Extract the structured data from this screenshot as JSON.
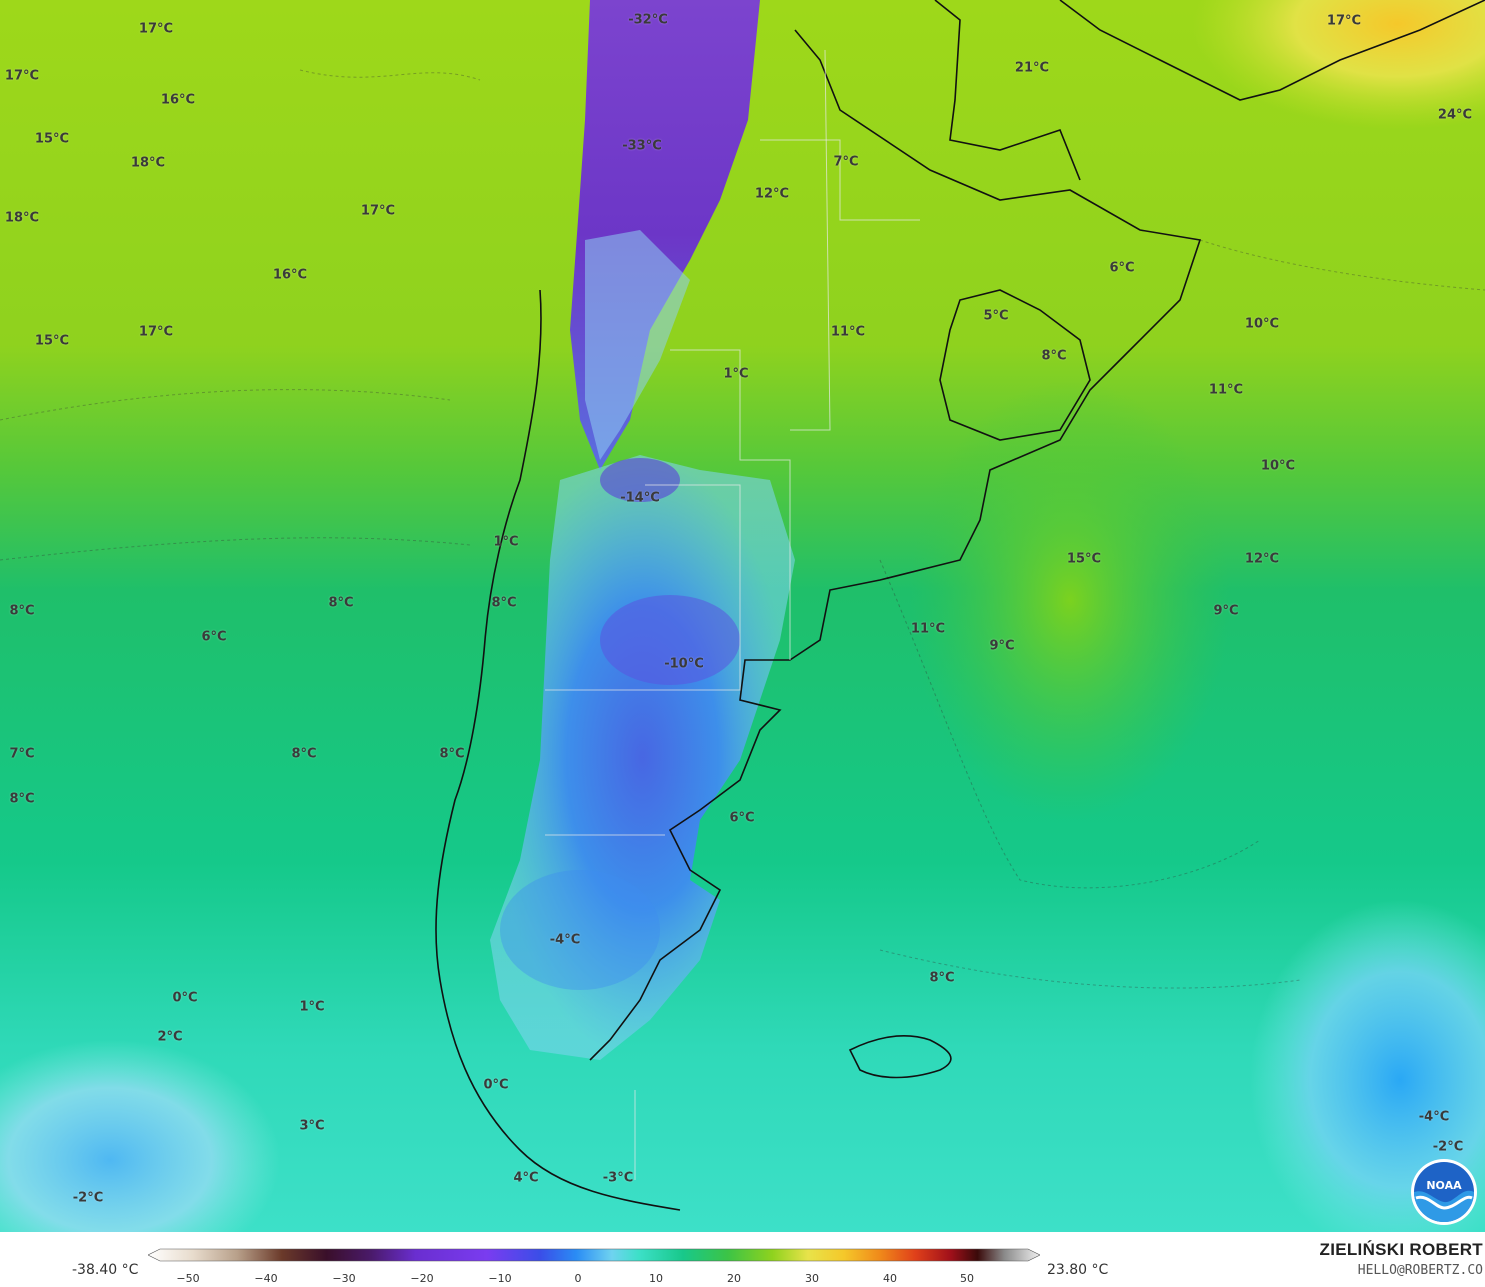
{
  "map": {
    "labels": [
      {
        "text": "-32°C"
      },
      {
        "text": "17°C"
      },
      {
        "text": "17°C"
      },
      {
        "text": "16°C"
      },
      {
        "text": "15°C"
      },
      {
        "text": "18°C"
      },
      {
        "text": "-33°C"
      },
      {
        "text": "18°C"
      },
      {
        "text": "17°C"
      },
      {
        "text": "16°C"
      },
      {
        "text": "17°C"
      },
      {
        "text": "15°C"
      },
      {
        "text": "12°C"
      },
      {
        "text": "7°C"
      },
      {
        "text": "21°C"
      },
      {
        "text": "17°C"
      },
      {
        "text": "24°C"
      },
      {
        "text": "6°C"
      },
      {
        "text": "5°C"
      },
      {
        "text": "8°C"
      },
      {
        "text": "10°C"
      },
      {
        "text": "11°C"
      },
      {
        "text": "11°C"
      },
      {
        "text": "1°C"
      },
      {
        "text": "10°C"
      },
      {
        "text": "-14°C"
      },
      {
        "text": "1°C"
      },
      {
        "text": "15°C"
      },
      {
        "text": "12°C"
      },
      {
        "text": "8°C"
      },
      {
        "text": "8°C"
      },
      {
        "text": "8°C"
      },
      {
        "text": "9°C"
      },
      {
        "text": "6°C"
      },
      {
        "text": "11°C"
      },
      {
        "text": "9°C"
      },
      {
        "text": "-10°C"
      },
      {
        "text": "7°C"
      },
      {
        "text": "8°C"
      },
      {
        "text": "8°C"
      },
      {
        "text": "8°C"
      },
      {
        "text": "6°C"
      },
      {
        "text": "-4°C"
      },
      {
        "text": "8°C"
      },
      {
        "text": "0°C"
      },
      {
        "text": "1°C"
      },
      {
        "text": "2°C"
      },
      {
        "text": "0°C"
      },
      {
        "text": "3°C"
      },
      {
        "text": "-4°C"
      },
      {
        "text": "-2°C"
      },
      {
        "text": "4°C"
      },
      {
        "text": "-3°C"
      },
      {
        "text": "-2°C"
      }
    ]
  },
  "logo": {
    "text": "NOAA"
  },
  "colorbar": {
    "min_label": "-38.40 °C",
    "max_label": "23.80 °C",
    "ticks": [
      "−50",
      "−40",
      "−30",
      "−20",
      "−10",
      "0",
      "10",
      "20",
      "30",
      "40",
      "50"
    ]
  },
  "credit": {
    "name": "ZIELIŃSKI ROBERT",
    "email": "HELLO@ROBERTZ.CO"
  }
}
